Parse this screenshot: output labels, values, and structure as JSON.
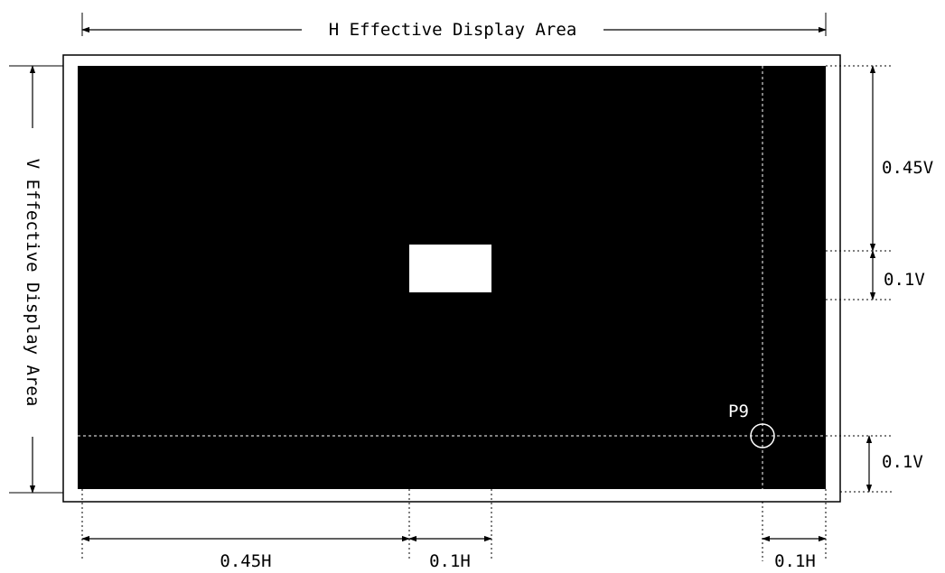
{
  "labels": {
    "h_area": "H Effective Display Area",
    "v_area": "V Effective Display Area",
    "dim_045v": "0.45V",
    "dim_01v_top": "0.1V",
    "dim_01v_bottom": "0.1V",
    "dim_045h": "0.45H",
    "dim_01h_mid": "0.1H",
    "dim_01h_right": "0.1H",
    "point": "P9"
  },
  "colors": {
    "background": "#ffffff",
    "display_area": "#000000",
    "window": "#ffffff",
    "guide": "#ffffff",
    "line": "#000000"
  }
}
